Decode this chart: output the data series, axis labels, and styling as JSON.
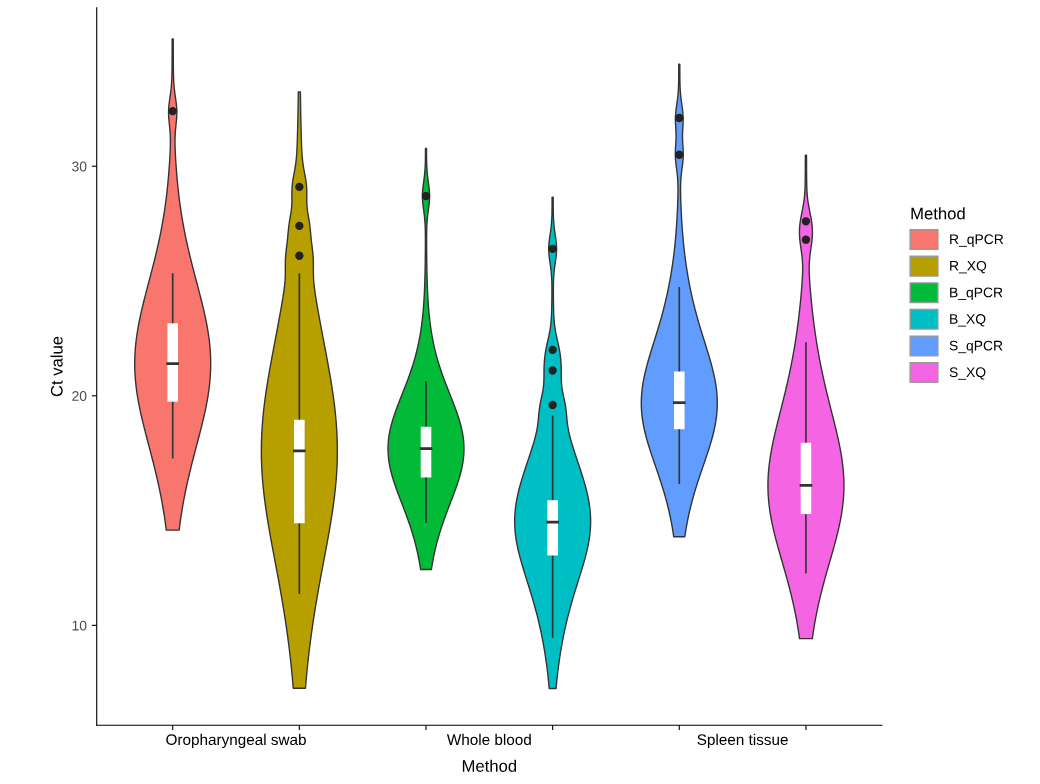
{
  "chart_data": {
    "type": "box",
    "xlabel": "Method",
    "ylabel": "Ct value",
    "legend_title": "Method",
    "legend": "right",
    "categories": [
      null,
      null,
      null,
      null,
      null,
      null
    ],
    "annotations": [
      "Oropharyngeal swab",
      "Whole blood",
      "Spleen tissue"
    ],
    "ylim": [
      5.65,
      36.9
    ],
    "yticks": [
      10,
      20,
      30
    ],
    "grid": false,
    "series": [
      {
        "name": "R_qPCR",
        "color": "#f8766d",
        "boxes": [
          {
            "low": 17.3,
            "q1": 19.7,
            "median": 21.4,
            "q3": 23.2,
            "high": 25.3,
            "outliers": [
              32.4
            ]
          },
          null,
          null,
          null,
          null,
          null
        ]
      },
      {
        "name": "R_XQ",
        "color": "#b79f00",
        "boxes": [
          null,
          {
            "low": 11.4,
            "q1": 14.4,
            "median": 17.6,
            "q3": 19.0,
            "high": 25.3,
            "outliers": [
              29.1,
              27.4,
              26.1
            ]
          },
          null,
          null,
          null,
          null
        ]
      },
      {
        "name": "B_qPCR",
        "color": "#00ba38",
        "boxes": [
          null,
          null,
          {
            "low": 14.5,
            "q1": 16.4,
            "median": 17.7,
            "q3": 18.7,
            "high": 20.6,
            "outliers": [
              28.7
            ]
          },
          null,
          null,
          null
        ]
      },
      {
        "name": "B_XQ",
        "color": "#00bfc4",
        "boxes": [
          null,
          null,
          null,
          {
            "low": 9.5,
            "q1": 13.0,
            "median": 14.5,
            "q3": 15.5,
            "high": 19.1,
            "outliers": [
              26.4,
              22.0,
              21.1,
              19.6
            ]
          },
          null,
          null
        ]
      },
      {
        "name": "S_qPCR",
        "color": "#619cff",
        "boxes": [
          null,
          null,
          null,
          null,
          {
            "low": 16.2,
            "q1": 18.5,
            "median": 19.7,
            "q3": 21.1,
            "high": 24.7,
            "outliers": [
              32.1,
              30.5
            ]
          },
          null
        ]
      },
      {
        "name": "S_XQ",
        "color": "#f564e3",
        "boxes": [
          null,
          null,
          null,
          null,
          null,
          {
            "low": 12.3,
            "q1": 14.8,
            "median": 16.1,
            "q3": 18.0,
            "high": 22.3,
            "outliers": [
              27.6,
              26.8
            ]
          }
        ]
      }
    ]
  }
}
